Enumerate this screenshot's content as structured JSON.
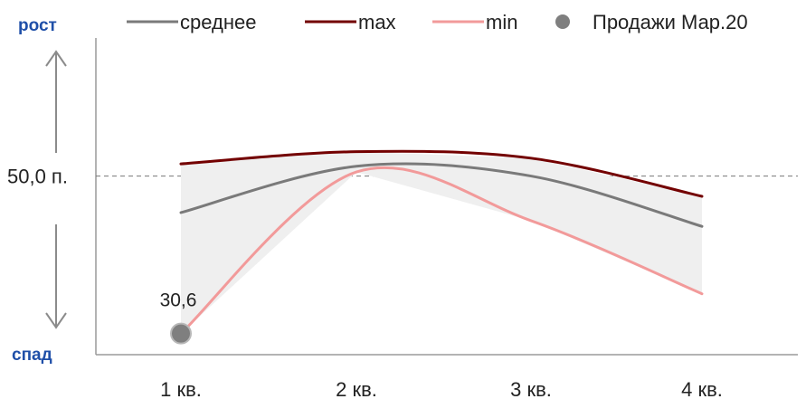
{
  "chart_data": {
    "type": "line",
    "categories": [
      "1 кв.",
      "2 кв.",
      "3 кв.",
      "4 кв."
    ],
    "series": [
      {
        "name": "среднее",
        "values": [
          45.5,
          51.2,
          50.0,
          43.8
        ],
        "color": "#7a7a7a"
      },
      {
        "name": "max",
        "values": [
          51.5,
          53.0,
          52.2,
          47.5
        ],
        "color": "#730000"
      },
      {
        "name": "min",
        "values": [
          30.6,
          50.5,
          44.5,
          35.5
        ],
        "color": "#f29a9a"
      }
    ],
    "point_series": {
      "name": "Продажи Мар.20",
      "category": "1 кв.",
      "value": 30.6,
      "label": "30,6",
      "color": "#7f7f7f"
    },
    "reference_line": {
      "value": 50.0,
      "label": "50,0 п."
    },
    "y_side_labels": {
      "top": "рост",
      "bottom": "спад"
    },
    "ylim": [
      28,
      67
    ],
    "grid": false,
    "legend": "top",
    "band_fill_color": "#efefef"
  }
}
